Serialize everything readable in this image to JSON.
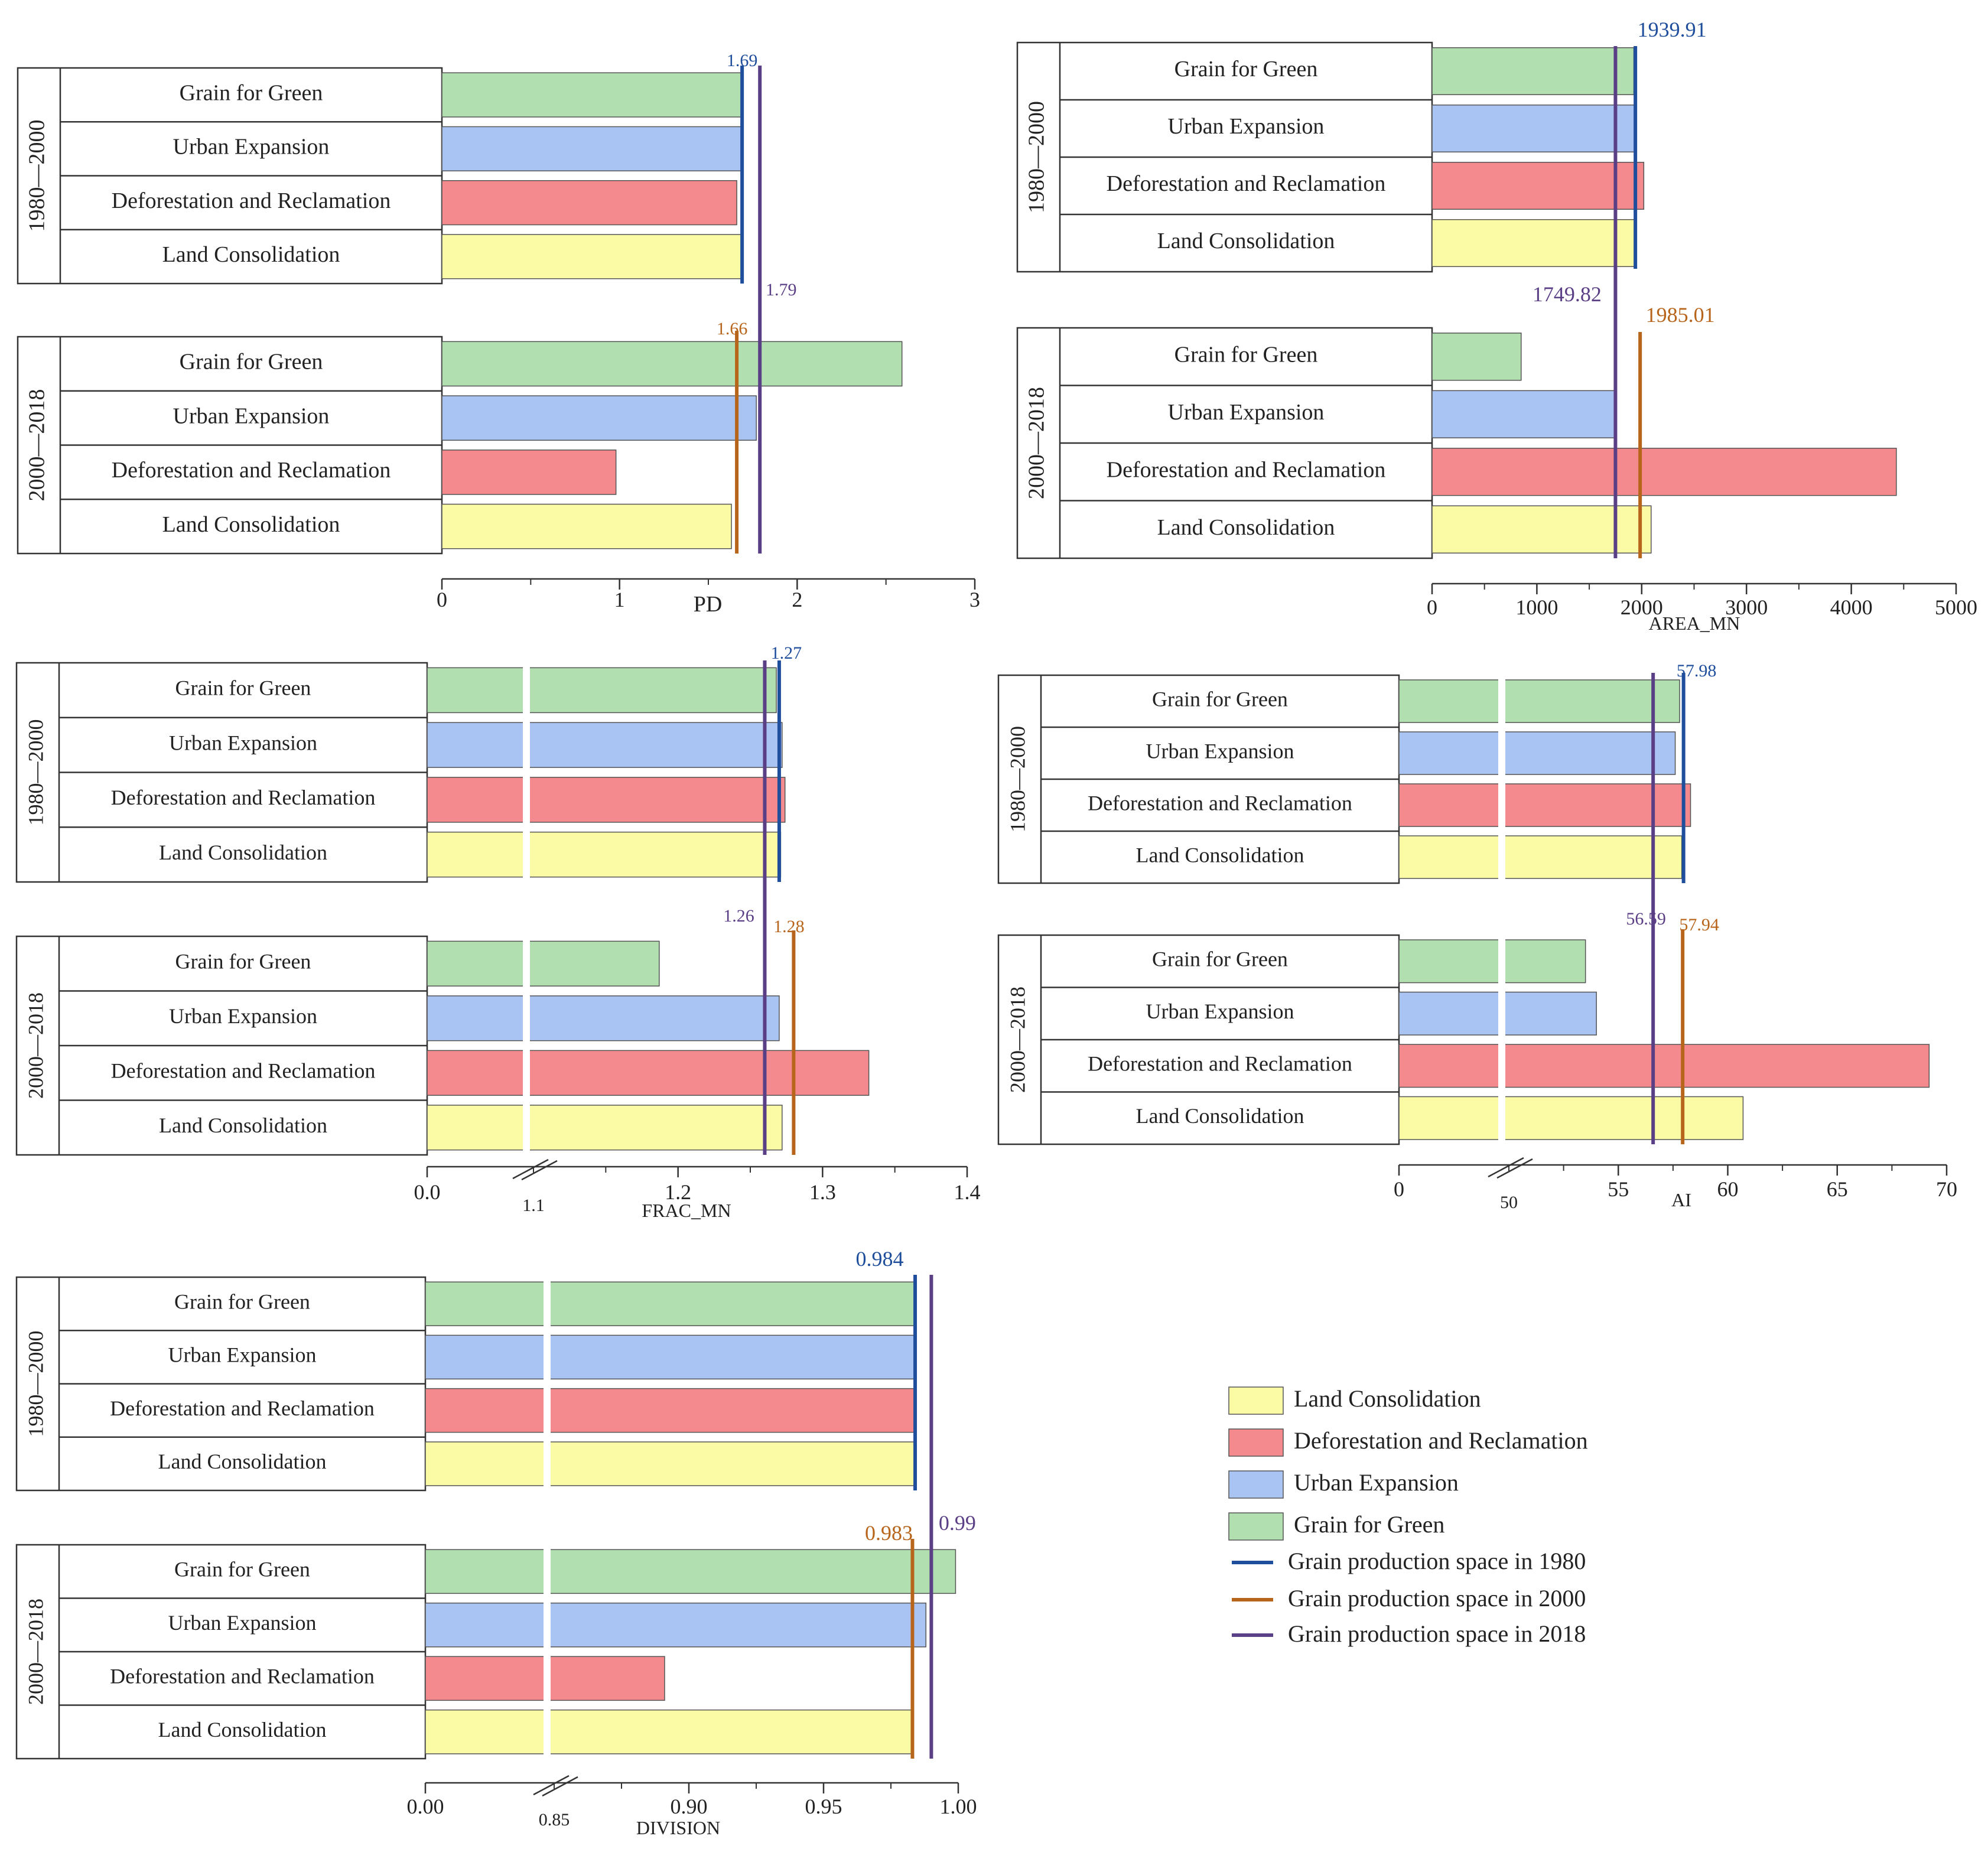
{
  "colors": {
    "grain_for_green": "#b2dfb0",
    "urban_expansion": "#a9c4f3",
    "deforestation_and_reclamation": "#f48a8e",
    "land_consolidation": "#fbfba6",
    "ref_1980": "#1f4e9c",
    "ref_2000": "#b8651c",
    "ref_2018": "#5a3f86",
    "axis": "#333333",
    "text": "#222222"
  },
  "legend": {
    "land_consolidation": "Land Consolidation",
    "deforestation_and_reclamation": "Deforestation and Reclamation",
    "urban_expansion": "Urban Expansion",
    "grain_for_green": "Grain for Green",
    "ref_1980": "Grain production space in 1980",
    "ref_2000": "Grain production space in 2000",
    "ref_2018": "Grain production space in 2018"
  },
  "chart_data": [
    {
      "type": "bar",
      "id": "pd",
      "xlabel": "PD",
      "xlim": [
        0,
        3
      ],
      "ticks": [
        0,
        1,
        2,
        3
      ],
      "tick_labels": [
        "0",
        "1",
        "2",
        "3"
      ],
      "categories": [
        "Grain for Green",
        "Urban Expansion",
        "Deforestation and Reclamation",
        "Land Consolidation"
      ],
      "periods": [
        {
          "label": "1980—2000",
          "values": [
            1.69,
            1.69,
            1.66,
            1.69
          ]
        },
        {
          "label": "2000—2018",
          "values": [
            2.59,
            1.77,
            0.98,
            1.63
          ]
        }
      ],
      "reference_lines": [
        {
          "series": "1980",
          "value": 1.69,
          "label": "1.69"
        },
        {
          "series": "2000",
          "value": 1.66,
          "label": "1.66"
        },
        {
          "series": "2018",
          "value": 1.79,
          "label": "1.79"
        }
      ]
    },
    {
      "type": "bar",
      "id": "area_mn",
      "xlabel": "AREA_MN",
      "xlim": [
        0,
        5000
      ],
      "ticks": [
        0,
        1000,
        2000,
        3000,
        4000,
        5000
      ],
      "tick_labels": [
        "0",
        "1000",
        "2000",
        "3000",
        "4000",
        "5000"
      ],
      "categories": [
        "Grain for Green",
        "Urban Expansion",
        "Deforestation and Reclamation",
        "Land Consolidation"
      ],
      "periods": [
        {
          "label": "1980—2000",
          "values": [
            1925,
            1930,
            2020,
            1935
          ]
        },
        {
          "label": "2000—2018",
          "values": [
            850,
            1745,
            4430,
            2090
          ]
        }
      ],
      "reference_lines": [
        {
          "series": "1980",
          "value": 1939.91,
          "label": "1939.91"
        },
        {
          "series": "2000",
          "value": 1985.01,
          "label": "1985.01"
        },
        {
          "series": "2018",
          "value": 1749.82,
          "label": "1749.82"
        }
      ]
    },
    {
      "type": "bar",
      "id": "frac_mn",
      "xlabel": "FRAC_MN",
      "xlim": [
        1.1,
        1.4
      ],
      "axis_origin_label": "0.0",
      "axis_break_label": "1.1",
      "ticks": [
        1.2,
        1.3,
        1.4
      ],
      "tick_labels": [
        "1.2",
        "1.3",
        "1.4"
      ],
      "categories": [
        "Grain for Green",
        "Urban Expansion",
        "Deforestation and Reclamation",
        "Land Consolidation"
      ],
      "periods": [
        {
          "label": "1980—2000",
          "values": [
            1.268,
            1.272,
            1.274,
            1.271
          ]
        },
        {
          "label": "2000—2018",
          "values": [
            1.187,
            1.27,
            1.332,
            1.272
          ]
        }
      ],
      "reference_lines": [
        {
          "series": "1980",
          "value": 1.27,
          "label": "1.27"
        },
        {
          "series": "2000",
          "value": 1.28,
          "label": "1.28"
        },
        {
          "series": "2018",
          "value": 1.26,
          "label": "1.26"
        }
      ]
    },
    {
      "type": "bar",
      "id": "ai",
      "xlabel": "AI",
      "xlim": [
        50,
        70
      ],
      "axis_origin_label": "0",
      "axis_break_label": "50",
      "ticks": [
        55,
        60,
        65,
        70
      ],
      "tick_labels": [
        "55",
        "60",
        "65",
        "70"
      ],
      "categories": [
        "Grain for Green",
        "Urban Expansion",
        "Deforestation and Reclamation",
        "Land Consolidation"
      ],
      "periods": [
        {
          "label": "1980—2000",
          "values": [
            57.8,
            57.6,
            58.3,
            57.9
          ]
        },
        {
          "label": "2000—2018",
          "values": [
            53.5,
            54.0,
            69.2,
            60.7
          ]
        }
      ],
      "reference_lines": [
        {
          "series": "1980",
          "value": 57.98,
          "label": "57.98"
        },
        {
          "series": "2000",
          "value": 57.94,
          "label": "57.94"
        },
        {
          "series": "2018",
          "value": 56.59,
          "label": "56.59"
        }
      ]
    },
    {
      "type": "bar",
      "id": "division",
      "xlabel": "DIVISION",
      "xlim": [
        0.85,
        1.0
      ],
      "axis_origin_label": "0.00",
      "axis_break_label": "0.85",
      "ticks": [
        0.9,
        0.95,
        1.0
      ],
      "tick_labels": [
        "0.90",
        "0.95",
        "1.00"
      ],
      "categories": [
        "Grain for Green",
        "Urban Expansion",
        "Deforestation and Reclamation",
        "Land Consolidation"
      ],
      "periods": [
        {
          "label": "1980—2000",
          "values": [
            0.984,
            0.984,
            0.984,
            0.984
          ]
        },
        {
          "label": "2000—2018",
          "values": [
            0.999,
            0.988,
            0.891,
            0.983
          ]
        }
      ],
      "reference_lines": [
        {
          "series": "1980",
          "value": 0.984,
          "label": "0.984"
        },
        {
          "series": "2000",
          "value": 0.983,
          "label": "0.983"
        },
        {
          "series": "2018",
          "value": 0.99,
          "label": "0.99"
        }
      ]
    }
  ]
}
